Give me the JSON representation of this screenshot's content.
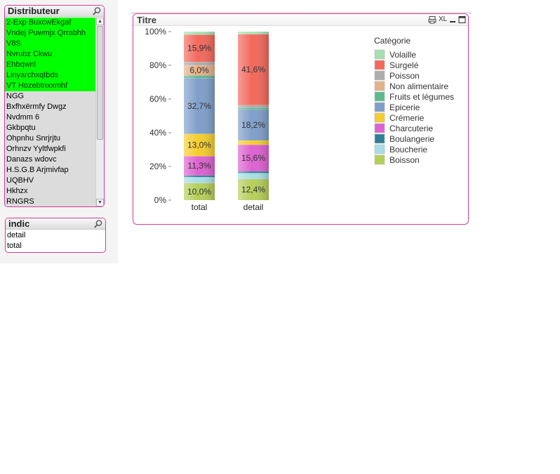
{
  "distributeur": {
    "title": "Distributeur",
    "items": [
      {
        "label": "2-Exp BuxcwEkgaf",
        "state": "selected"
      },
      {
        "label": "Vndej Puwmjx Qrrabhh",
        "state": "selected"
      },
      {
        "label": "V8S",
        "state": "selected"
      },
      {
        "label": "Nvrubz Ckwu",
        "state": "selected"
      },
      {
        "label": "Ehbqwnl",
        "state": "selected"
      },
      {
        "label": "Linyarchxqtbds",
        "state": "selected"
      },
      {
        "label": "VT Hozebtnxxmhf",
        "state": "selected"
      },
      {
        "label": "NGG",
        "state": "excluded"
      },
      {
        "label": "Bxfhxërmfy Dwgz",
        "state": "excluded"
      },
      {
        "label": "Nvdmm 6",
        "state": "excluded"
      },
      {
        "label": "Gkbpqtu",
        "state": "excluded"
      },
      {
        "label": "Ohpnhu Snrjrjtu",
        "state": "excluded"
      },
      {
        "label": "Orhnzv Yyltfwpkfi",
        "state": "excluded"
      },
      {
        "label": "Danazs wdovc",
        "state": "excluded"
      },
      {
        "label": "H.S.G.B Arjmivfap",
        "state": "excluded"
      },
      {
        "label": "UQBHV",
        "state": "excluded"
      },
      {
        "label": "Hkhzx",
        "state": "excluded"
      },
      {
        "label": "RNGRS",
        "state": "excluded"
      }
    ]
  },
  "indic": {
    "title": "indic",
    "items": [
      {
        "label": "detail",
        "state": "plain"
      },
      {
        "label": "total",
        "state": "plain"
      }
    ]
  },
  "chart_panel": {
    "title": "Titre",
    "xl_label": "XL"
  },
  "chart_data": {
    "type": "bar",
    "stacked": true,
    "normalized": true,
    "categories": [
      "total",
      "detail"
    ],
    "ylim": [
      0,
      100
    ],
    "yticks": [
      "0%",
      "20%",
      "40%",
      "60%",
      "80%",
      "100%"
    ],
    "grid": false,
    "legend_title": "Catégorie",
    "legend_position": "right",
    "series": [
      {
        "name": "Boisson",
        "color": "#b5cf5a",
        "values": [
          10.0,
          12.4
        ],
        "labels": [
          "10,0%",
          "12,4%"
        ]
      },
      {
        "name": "Boucherie",
        "color": "#a8dde6",
        "values": [
          3.5,
          3.5
        ],
        "labels": [
          "",
          ""
        ]
      },
      {
        "name": "Boulangerie",
        "color": "#2e7f98",
        "values": [
          1.0,
          1.0
        ],
        "labels": [
          "",
          ""
        ]
      },
      {
        "name": "Charcuterie",
        "color": "#dd62d0",
        "values": [
          11.3,
          15.6
        ],
        "labels": [
          "11,3%",
          "15,6%"
        ]
      },
      {
        "name": "Crémerie",
        "color": "#f5cd2e",
        "values": [
          13.0,
          2.5
        ],
        "labels": [
          "13,0%",
          ""
        ]
      },
      {
        "name": "Epicerie",
        "color": "#7f9fc9",
        "values": [
          32.7,
          18.2
        ],
        "labels": [
          "32,7%",
          "18,2%"
        ]
      },
      {
        "name": "Fruits et légumes",
        "color": "#5fb98d",
        "values": [
          1.5,
          1.0
        ],
        "labels": [
          "",
          ""
        ]
      },
      {
        "name": "Non alimentaire",
        "color": "#e5b189",
        "values": [
          6.0,
          0.0
        ],
        "labels": [
          "6,0%",
          ""
        ]
      },
      {
        "name": "Poisson",
        "color": "#adadad",
        "values": [
          2.0,
          1.5
        ],
        "labels": [
          "",
          ""
        ]
      },
      {
        "name": "Surgelé",
        "color": "#f3685c",
        "values": [
          15.9,
          41.6
        ],
        "labels": [
          "15,9%",
          "41,6%"
        ]
      },
      {
        "name": "Volaille",
        "color": "#a6e0b2",
        "values": [
          1.8,
          1.5
        ],
        "labels": [
          "",
          ""
        ]
      }
    ]
  }
}
